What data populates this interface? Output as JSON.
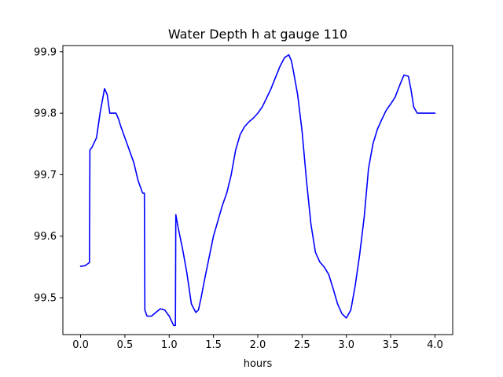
{
  "chart_data": {
    "type": "line",
    "title": "Water Depth h at gauge 110",
    "xlabel": "hours",
    "ylabel": "",
    "xlim": [
      -0.2,
      4.2
    ],
    "ylim": [
      99.44,
      99.91
    ],
    "xticks": [
      0.0,
      0.5,
      1.0,
      1.5,
      2.0,
      2.5,
      3.0,
      3.5,
      4.0
    ],
    "xtick_labels": [
      "0.0",
      "0.5",
      "1.0",
      "1.5",
      "2.0",
      "2.5",
      "3.0",
      "3.5",
      "4.0"
    ],
    "yticks": [
      99.5,
      99.6,
      99.7,
      99.8,
      99.9
    ],
    "ytick_labels": [
      "99.5",
      "99.6",
      "99.7",
      "99.8",
      "99.9"
    ],
    "grid": false,
    "series": [
      {
        "color": "#0000ff",
        "x": [
          0.0,
          0.05,
          0.1,
          0.105,
          0.13,
          0.18,
          0.22,
          0.27,
          0.3,
          0.33,
          0.35,
          0.4,
          0.43,
          0.45,
          0.5,
          0.6,
          0.65,
          0.7,
          0.72,
          0.725,
          0.75,
          0.8,
          0.85,
          0.9,
          0.95,
          1.0,
          1.05,
          1.07,
          1.075,
          1.1,
          1.15,
          1.2,
          1.25,
          1.3,
          1.33,
          1.36,
          1.4,
          1.5,
          1.6,
          1.65,
          1.7,
          1.75,
          1.8,
          1.85,
          1.9,
          1.95,
          2.0,
          2.05,
          2.1,
          2.15,
          2.2,
          2.25,
          2.3,
          2.35,
          2.38,
          2.4,
          2.45,
          2.5,
          2.55,
          2.6,
          2.65,
          2.7,
          2.75,
          2.8,
          2.85,
          2.9,
          2.95,
          3.0,
          3.05,
          3.1,
          3.15,
          3.2,
          3.25,
          3.3,
          3.35,
          3.4,
          3.45,
          3.5,
          3.55,
          3.6,
          3.65,
          3.7,
          3.73,
          3.76,
          3.8,
          3.85,
          3.9,
          3.95,
          4.0
        ],
        "y": [
          99.551,
          99.552,
          99.557,
          99.74,
          99.745,
          99.76,
          99.8,
          99.84,
          99.83,
          99.8,
          99.8,
          99.8,
          99.79,
          99.78,
          99.76,
          99.72,
          99.69,
          99.67,
          99.67,
          99.48,
          99.47,
          99.47,
          99.476,
          99.482,
          99.48,
          99.47,
          99.455,
          99.455,
          99.635,
          99.615,
          99.58,
          99.54,
          99.49,
          99.476,
          99.48,
          99.5,
          99.53,
          99.6,
          99.65,
          99.67,
          99.7,
          99.74,
          99.765,
          99.778,
          99.786,
          99.792,
          99.8,
          99.81,
          99.825,
          99.84,
          99.858,
          99.876,
          99.89,
          99.895,
          99.885,
          99.87,
          99.83,
          99.77,
          99.69,
          99.62,
          99.574,
          99.558,
          99.55,
          99.538,
          99.515,
          99.49,
          99.474,
          99.467,
          99.48,
          99.52,
          99.57,
          99.63,
          99.71,
          99.75,
          99.774,
          99.79,
          99.805,
          99.815,
          99.826,
          99.845,
          99.862,
          99.86,
          99.838,
          99.81,
          99.8,
          99.8,
          99.8,
          99.8,
          99.8
        ]
      }
    ]
  }
}
